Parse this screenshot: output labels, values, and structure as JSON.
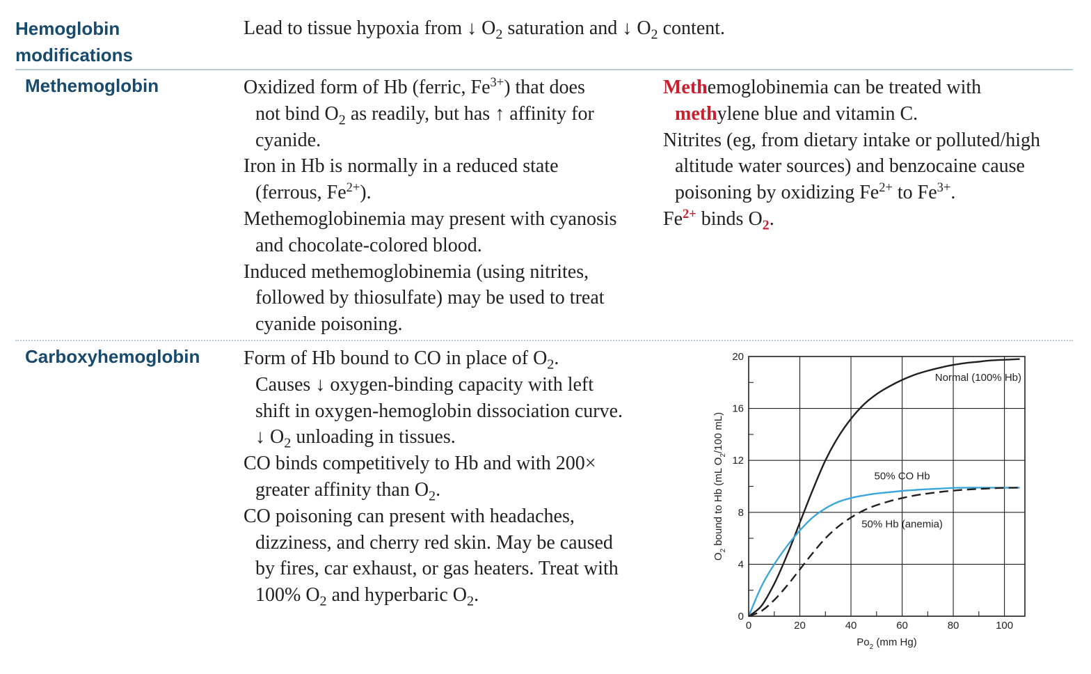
{
  "header": {
    "title_line1": "Hemoglobin",
    "title_line2": "modifications",
    "intro_a": "Lead to tissue hypoxia from ",
    "down_arrow": "↓",
    "o": " O",
    "sub2": "2",
    "intro_b": " saturation and ",
    "intro_c": " content."
  },
  "methemoglobin": {
    "title": "Methemoglobin",
    "p1_a": "Oxidized form of Hb (ferric, Fe",
    "p1_sup": "3+",
    "p1_b": ") that does",
    "p1_c": "not bind O",
    "p1_d": " as readily, but has ",
    "up_arrow": "↑",
    "p1_e": " affinity for",
    "p1_f": "cyanide.",
    "p2_a": "Iron in Hb is normally in a reduced state",
    "p2_b": "(ferrous, Fe",
    "p2_sup": "2+",
    "p2_c": ").",
    "p3_a": "Methemoglobinemia may present with cyanosis",
    "p3_b": "and chocolate-colored blood.",
    "p4_a": "Induced methemoglobinemia (using nitrites,",
    "p4_b": "followed by thiosulfate) may be used to treat",
    "p4_c": "cyanide poisoning.",
    "r1_red": "Meth",
    "r1_a": "emoglobinemia can be treated with",
    "r1_red2": "meth",
    "r1_b": "ylene blue and vitamin C.",
    "r2_a": "Nitrites (eg, from dietary intake or polluted/high",
    "r2_b": "altitude water sources) and benzocaine cause",
    "r2_c": "poisoning by oxidizing Fe",
    "r2_sup1": "2+",
    "r2_d": " to Fe",
    "r2_sup2": "3+",
    "r2_e": ".",
    "r3_a": "Fe",
    "r3_sup": "2+",
    "r3_b": " binds O",
    "r3_sub": "2",
    "r3_c": "."
  },
  "carboxyhemoglobin": {
    "title": "Carboxyhemoglobin",
    "p1_a": "Form of Hb bound to CO in place of O",
    "p1_b": ".",
    "p1_c": "Causes ",
    "p1_d": " oxygen-binding capacity with left",
    "p1_e": "shift in oxygen-hemoglobin dissociation curve.",
    "p1_f": " unloading in tissues.",
    "p2_a": "CO binds competitively to Hb and with 200×",
    "p2_b": "greater affinity than O",
    "p2_c": ".",
    "p3_a": "CO poisoning can present with headaches,",
    "p3_b": "dizziness, and cherry red skin. May be caused",
    "p3_c": "by fires, car exhaust, or gas heaters. Treat with",
    "p3_d": "100% O",
    "p3_e": " and hyperbaric O",
    "p3_f": "."
  },
  "chart_data": {
    "type": "line",
    "xlabel_main": "Po",
    "xlabel_sub": "2",
    "xlabel_unit": " (mm Hg)",
    "ylabel_a": "O",
    "ylabel_sub": "2",
    "ylabel_b": " bound to Hb (mL O",
    "ylabel_sub2": "2",
    "ylabel_c": "/100 mL)",
    "xlim": [
      0,
      108
    ],
    "ylim": [
      0,
      20
    ],
    "x_ticks": [
      "0",
      "20",
      "40",
      "60",
      "80",
      "100"
    ],
    "y_ticks": [
      "0",
      "4",
      "8",
      "12",
      "16",
      "20"
    ],
    "grid": true,
    "series_colors": {
      "normal": "#231f20",
      "co": "#3aa6dc",
      "anemia": "#231f20"
    },
    "series": [
      {
        "name": "Normal (100% Hb)",
        "style": "solid",
        "x": [
          0,
          5,
          10,
          15,
          20,
          25,
          30,
          35,
          40,
          45,
          50,
          55,
          60,
          65,
          70,
          75,
          80,
          85,
          90,
          95,
          100,
          106
        ],
        "values": [
          0,
          0.8,
          2.5,
          4.7,
          7.2,
          9.7,
          12.0,
          13.8,
          15.2,
          16.3,
          17.1,
          17.7,
          18.2,
          18.6,
          18.9,
          19.15,
          19.35,
          19.5,
          19.6,
          19.7,
          19.75,
          19.8
        ]
      },
      {
        "name": "50% CO Hb",
        "style": "solid",
        "x": [
          0,
          5,
          10,
          15,
          20,
          25,
          30,
          35,
          40,
          45,
          50,
          55,
          60,
          65,
          70,
          75,
          80,
          85,
          90,
          95,
          100,
          106
        ],
        "values": [
          0,
          2.3,
          4.0,
          5.4,
          6.6,
          7.6,
          8.3,
          8.8,
          9.1,
          9.3,
          9.45,
          9.55,
          9.65,
          9.72,
          9.78,
          9.83,
          9.88,
          9.9,
          9.9,
          9.9,
          9.9,
          9.9
        ]
      },
      {
        "name": "50% Hb (anemia)",
        "style": "dashed",
        "x": [
          0,
          5,
          10,
          15,
          20,
          25,
          30,
          35,
          40,
          45,
          50,
          55,
          60,
          65,
          70,
          75,
          80,
          85,
          90,
          95,
          100,
          106
        ],
        "values": [
          0,
          0.4,
          1.25,
          2.35,
          3.6,
          4.85,
          6.0,
          6.9,
          7.6,
          8.15,
          8.55,
          8.85,
          9.1,
          9.3,
          9.45,
          9.57,
          9.67,
          9.75,
          9.8,
          9.85,
          9.88,
          9.9
        ]
      }
    ]
  }
}
